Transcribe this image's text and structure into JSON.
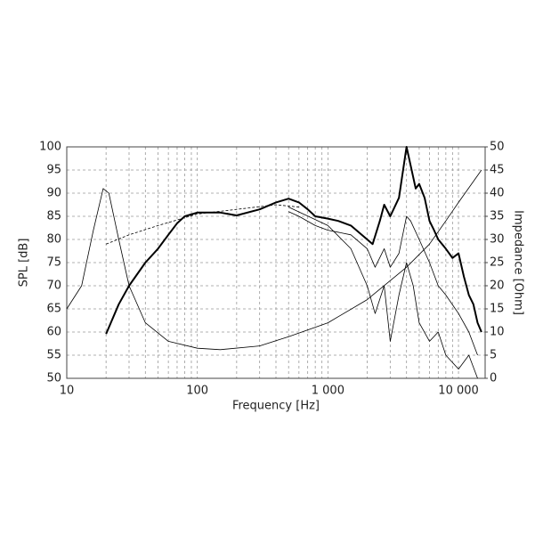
{
  "chart_data": {
    "type": "line",
    "xlabel": "Frequency [Hz]",
    "ylabel": "SPL [dB]",
    "y2label": "Impedance [Ohm]",
    "xscale": "log",
    "xlim": [
      10,
      16000
    ],
    "xticks": [
      10,
      100,
      {
        "value": 1000,
        "label": "1 000"
      },
      {
        "value": 10000,
        "label": "10 000"
      }
    ],
    "x_minor_grid": [
      20,
      30,
      40,
      50,
      60,
      70,
      80,
      90,
      200,
      300,
      400,
      500,
      600,
      700,
      800,
      900,
      2000,
      3000,
      4000,
      5000,
      6000,
      7000,
      8000,
      9000
    ],
    "ylim": [
      50,
      100
    ],
    "yticks": [
      50,
      55,
      60,
      65,
      70,
      75,
      80,
      85,
      90,
      95,
      100
    ],
    "y2lim": [
      0,
      50
    ],
    "y2ticks": [
      0,
      5,
      10,
      15,
      20,
      25,
      30,
      35,
      40,
      45,
      50
    ],
    "grid": true,
    "series": [
      {
        "color": "#000000",
        "width": 2,
        "x": [
          20,
          25,
          30,
          40,
          50,
          60,
          70,
          80,
          100,
          150,
          200,
          300,
          400,
          500,
          600,
          700,
          800,
          1000,
          1200,
          1500,
          2000,
          2200,
          2500,
          2700,
          3000,
          3500,
          4000,
          4300,
          4700,
          5000,
          5500,
          6000,
          6500,
          7000,
          8000,
          9000,
          10000,
          11000,
          12000,
          13000,
          14000,
          15000
        ],
        "values": [
          59.6,
          66,
          70,
          75,
          78,
          81,
          83.5,
          85,
          85.8,
          85.8,
          85.2,
          86.5,
          88,
          88.8,
          88,
          86.5,
          85,
          84.5,
          84,
          83,
          80,
          79,
          84,
          87.5,
          85,
          89,
          100,
          96,
          91,
          92,
          89,
          84,
          82,
          80,
          78,
          76,
          77,
          72,
          68,
          66,
          62,
          60
        ]
      },
      {
        "color": "#000000",
        "width": 0.8,
        "dash": true,
        "x": [
          20,
          30,
          50,
          100,
          200,
          400,
          600
        ],
        "values": [
          79,
          81,
          83,
          85.5,
          86.5,
          87.5,
          87
        ]
      },
      {
        "color": "#000000",
        "width": 0.8,
        "x": [
          500,
          600,
          800,
          1000,
          1500,
          2000,
          2300,
          2700,
          3000,
          3500,
          4000,
          4300,
          5000,
          6000,
          7000,
          8000,
          10000,
          12000,
          14000
        ],
        "values": [
          86,
          85,
          83,
          82,
          81,
          78,
          74,
          78,
          74,
          77,
          85,
          84,
          80,
          75,
          70,
          68,
          64,
          60,
          55
        ]
      },
      {
        "color": "#000000",
        "width": 0.8,
        "x": [
          500,
          1000,
          1500,
          2000,
          2300,
          2700,
          3000,
          3500,
          4000,
          4500,
          5000,
          6000,
          7000,
          8000,
          10000,
          12000,
          14000
        ],
        "values": [
          87,
          83,
          78,
          70,
          64,
          70,
          58,
          68,
          75,
          70,
          62,
          58,
          60,
          55,
          52,
          55,
          50
        ]
      },
      {
        "color": "#000000",
        "width": 0.8,
        "axis": "y2",
        "x": [
          10,
          13,
          16,
          19,
          21,
          25,
          30,
          40,
          60,
          100,
          150,
          300,
          500,
          1000,
          2000,
          4000,
          6000,
          8000,
          10000,
          15000
        ],
        "values": [
          15,
          20,
          32,
          41,
          40,
          30,
          20,
          12,
          8,
          6.5,
          6.2,
          7,
          9,
          12,
          17,
          24,
          29,
          34,
          38,
          45
        ]
      }
    ]
  }
}
